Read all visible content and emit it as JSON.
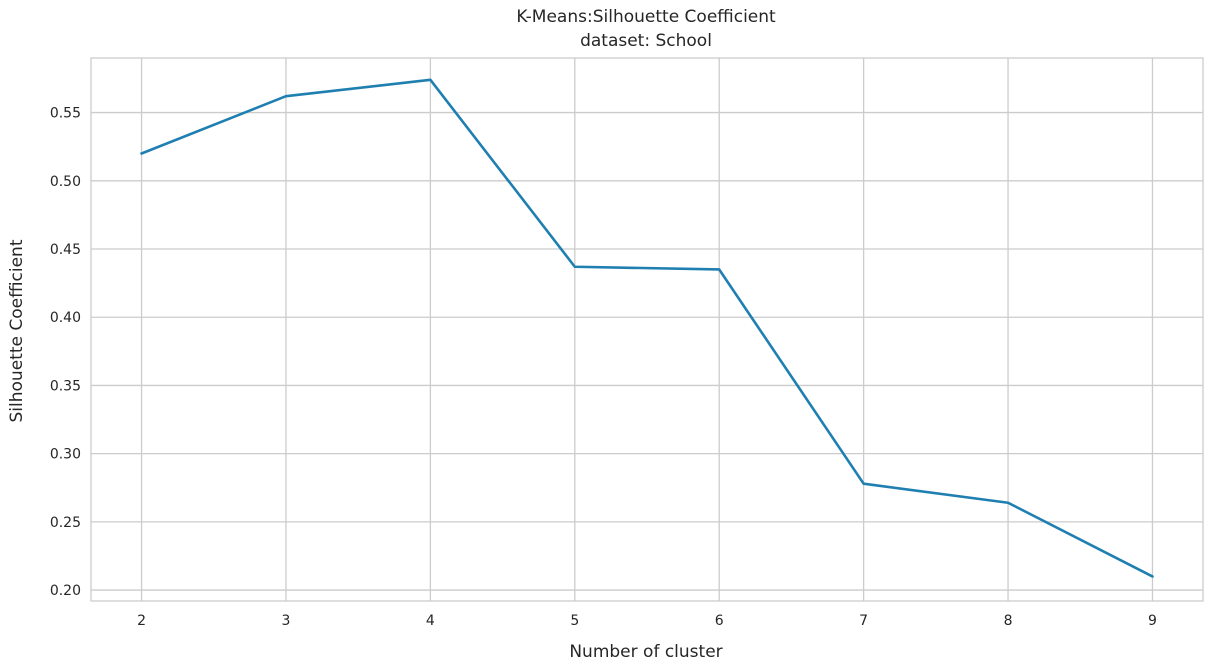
{
  "chart_data": {
    "type": "line",
    "title": "K-Means:Silhouette Coefficient",
    "subtitle": "dataset: School",
    "xlabel": "Number of cluster",
    "ylabel": "Silhouette Coefficient",
    "x": [
      2,
      3,
      4,
      5,
      6,
      7,
      8,
      9
    ],
    "x_tick_labels": [
      "2",
      "3",
      "4",
      "5",
      "6",
      "7",
      "8",
      "9"
    ],
    "y_ticks": [
      0.2,
      0.25,
      0.3,
      0.35,
      0.4,
      0.45,
      0.5,
      0.55
    ],
    "y_tick_labels": [
      "0.20",
      "0.25",
      "0.30",
      "0.35",
      "0.40",
      "0.45",
      "0.50",
      "0.55"
    ],
    "xlim": [
      1.65,
      9.35
    ],
    "ylim": [
      0.192,
      0.59
    ],
    "grid": true,
    "series": [
      {
        "color": "#1f7fb1",
        "values": [
          0.52,
          0.562,
          0.574,
          0.437,
          0.435,
          0.278,
          0.264,
          0.21
        ]
      }
    ]
  }
}
